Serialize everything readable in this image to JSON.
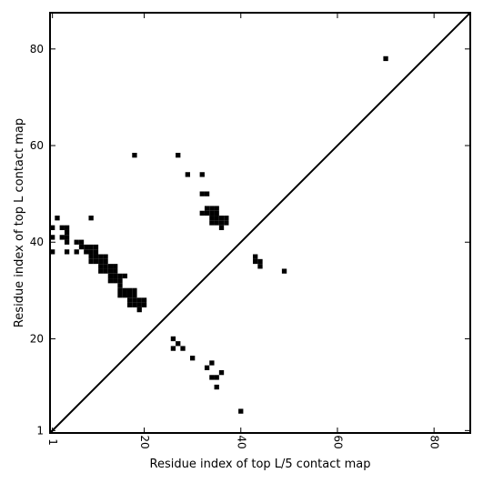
{
  "chart_data": {
    "type": "heatmap",
    "xlabel": "Residue index of top L/5 contact map",
    "ylabel": "Residue index of top L contact map",
    "xlim": [
      0.5,
      87.5
    ],
    "ylim": [
      0.5,
      87.5
    ],
    "x_ticks": [
      1,
      20,
      40,
      60,
      80
    ],
    "y_ticks": [
      1,
      20,
      40,
      60,
      80
    ],
    "grid": false,
    "diagonal_line": true,
    "contact_color": "#000000",
    "contacts_upper": [
      [
        70,
        78
      ]
    ],
    "contacts_lower": [
      [
        1,
        38
      ],
      [
        1,
        41
      ],
      [
        1,
        43
      ],
      [
        2,
        45
      ],
      [
        3,
        41
      ],
      [
        3,
        43
      ],
      [
        4,
        38
      ],
      [
        4,
        40
      ],
      [
        4,
        41
      ],
      [
        4,
        42
      ],
      [
        4,
        43
      ],
      [
        6,
        38
      ],
      [
        6,
        40
      ],
      [
        7,
        39
      ],
      [
        7,
        40
      ],
      [
        8,
        38
      ],
      [
        8,
        39
      ],
      [
        9,
        36
      ],
      [
        9,
        37
      ],
      [
        9,
        38
      ],
      [
        9,
        39
      ],
      [
        9,
        45
      ],
      [
        10,
        36
      ],
      [
        10,
        37
      ],
      [
        10,
        38
      ],
      [
        10,
        39
      ],
      [
        11,
        34
      ],
      [
        11,
        35
      ],
      [
        11,
        36
      ],
      [
        11,
        37
      ],
      [
        12,
        34
      ],
      [
        12,
        35
      ],
      [
        12,
        36
      ],
      [
        12,
        37
      ],
      [
        13,
        32
      ],
      [
        13,
        33
      ],
      [
        13,
        34
      ],
      [
        13,
        35
      ],
      [
        14,
        32
      ],
      [
        14,
        33
      ],
      [
        14,
        34
      ],
      [
        14,
        35
      ],
      [
        15,
        29
      ],
      [
        15,
        30
      ],
      [
        15,
        31
      ],
      [
        15,
        32
      ],
      [
        15,
        33
      ],
      [
        16,
        29
      ],
      [
        16,
        30
      ],
      [
        16,
        33
      ],
      [
        17,
        27
      ],
      [
        17,
        28
      ],
      [
        17,
        29
      ],
      [
        17,
        30
      ],
      [
        18,
        27
      ],
      [
        18,
        28
      ],
      [
        18,
        29
      ],
      [
        18,
        30
      ],
      [
        18,
        58
      ],
      [
        19,
        26
      ],
      [
        19,
        27
      ],
      [
        19,
        28
      ],
      [
        20,
        27
      ],
      [
        20,
        28
      ],
      [
        26,
        18
      ],
      [
        26,
        20
      ],
      [
        27,
        19
      ],
      [
        27,
        58
      ],
      [
        28,
        18
      ],
      [
        29,
        54
      ],
      [
        30,
        16
      ],
      [
        32,
        46
      ],
      [
        32,
        50
      ],
      [
        32,
        54
      ],
      [
        33,
        14
      ],
      [
        33,
        46
      ],
      [
        33,
        47
      ],
      [
        33,
        50
      ],
      [
        34,
        12
      ],
      [
        34,
        15
      ],
      [
        34,
        44
      ],
      [
        34,
        45
      ],
      [
        34,
        46
      ],
      [
        34,
        47
      ],
      [
        35,
        10
      ],
      [
        35,
        12
      ],
      [
        35,
        44
      ],
      [
        35,
        45
      ],
      [
        35,
        46
      ],
      [
        35,
        47
      ],
      [
        36,
        13
      ],
      [
        36,
        43
      ],
      [
        36,
        44
      ],
      [
        36,
        45
      ],
      [
        37,
        44
      ],
      [
        37,
        45
      ],
      [
        40,
        5
      ],
      [
        43,
        36
      ],
      [
        43,
        37
      ],
      [
        44,
        35
      ],
      [
        44,
        36
      ],
      [
        49,
        34
      ]
    ]
  }
}
